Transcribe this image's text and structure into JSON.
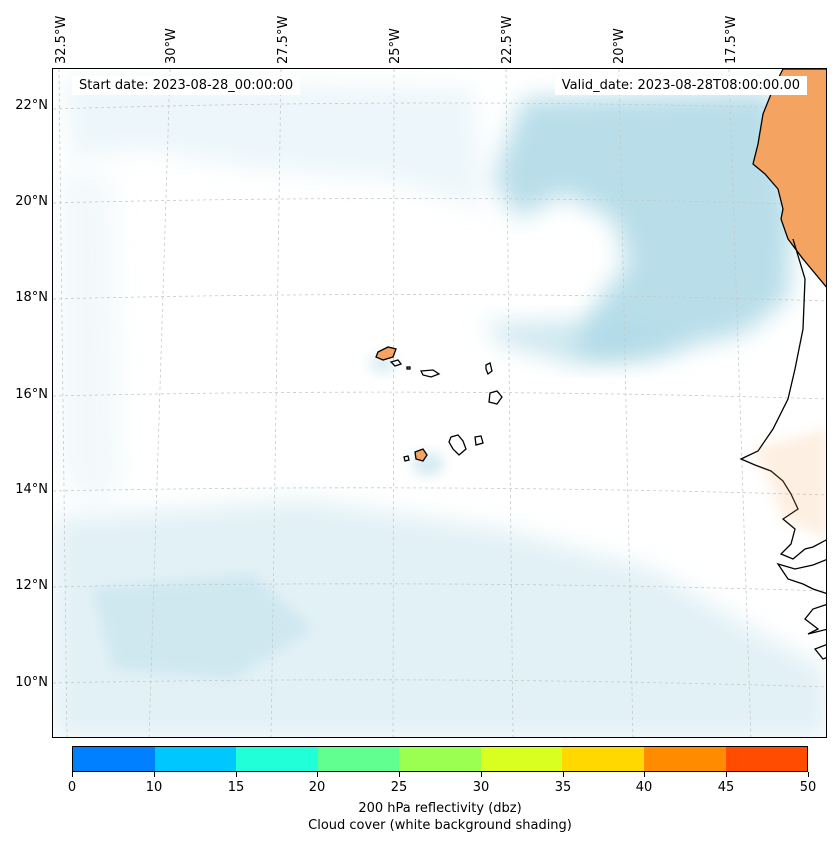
{
  "map": {
    "start_date_label": "Start date: 2023-08-28_00:00:00",
    "valid_date_label": "Valid_date: 2023-08-28T08:00:00.00",
    "lon_labels": [
      "32.5°W",
      "30°W",
      "27.5°W",
      "25°W",
      "22.5°W",
      "20°W",
      "17.5°W"
    ],
    "lat_labels": [
      "22°N",
      "20°N",
      "18°N",
      "16°N",
      "14°N",
      "12°N",
      "10°N"
    ],
    "land_color": "#f4a460",
    "coast_color": "#000000",
    "cloud_color": "#add8e6"
  },
  "colorbar": {
    "ticks": [
      "0",
      "10",
      "15",
      "20",
      "25",
      "30",
      "35",
      "40",
      "45",
      "50"
    ],
    "colors": [
      "#0080ff",
      "#00c8ff",
      "#20ffd8",
      "#60ff90",
      "#9aff50",
      "#d8ff20",
      "#ffd800",
      "#ff8c00",
      "#ff4c00"
    ],
    "label_line1": "200 hPa reflectivity (dbz)",
    "label_line2": "Cloud cover (white background shading)"
  }
}
